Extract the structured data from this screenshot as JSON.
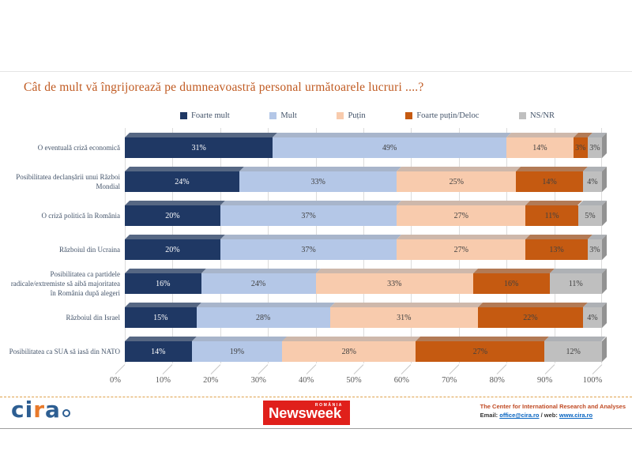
{
  "title": "Cât de mult vă îngrijorează pe dumneavoastră personal următoarele lucruri ....?",
  "chart_data": {
    "type": "bar",
    "orientation": "horizontal",
    "stacked": true,
    "grid": true,
    "legend_position": "top",
    "xlim": [
      0,
      100
    ],
    "value_suffix": "%",
    "x_tick_labels": [
      "0%",
      "10%",
      "20%",
      "30%",
      "40%",
      "50%",
      "60%",
      "70%",
      "80%",
      "90%",
      "100%"
    ],
    "categories": [
      "O eventuală criză economică",
      "Posibilitatea declanșării unui Război Mondial",
      "O criză politică în România",
      "Războiul din Ucraina",
      "Posibilitatea ca partidele radicale/extremiste să aibă majoritatea în România după alegeri",
      "Războiul din Israel",
      "Posibilitatea ca SUA să iasă din NATO"
    ],
    "series": [
      {
        "name": "Foarte mult",
        "color": "#1F3864",
        "label_color": "#FFFFFF",
        "values": [
          31,
          24,
          20,
          20,
          16,
          15,
          14
        ]
      },
      {
        "name": "Mult",
        "color": "#B4C7E7",
        "label_color": "#404040",
        "values": [
          49,
          33,
          37,
          37,
          24,
          28,
          19
        ]
      },
      {
        "name": "Puțin",
        "color": "#F8CBAD",
        "label_color": "#404040",
        "values": [
          14,
          25,
          27,
          27,
          33,
          31,
          28
        ]
      },
      {
        "name": "Foarte puțin/Deloc",
        "color": "#C55A11",
        "label_color": "#404040",
        "values": [
          3,
          14,
          11,
          13,
          16,
          22,
          27
        ]
      },
      {
        "name": "NS/NR",
        "color": "#BFBFBF",
        "label_color": "#404040",
        "values": [
          3,
          4,
          5,
          3,
          11,
          4,
          12
        ]
      }
    ]
  },
  "colors": {
    "title": "#C05A21",
    "category_label": "#44546A",
    "axis_label": "#595959",
    "gridline": "#DCDCDC",
    "footer_dash": "#DFA04A",
    "newsweek_red": "#E0201B",
    "link_blue": "#0563C1",
    "cira_blue": "#2D5E92",
    "cira_orange": "#E87A2B"
  },
  "footer": {
    "cira": {
      "p1": "ci",
      "p2": "r",
      "p3": "a"
    },
    "newsweek": {
      "country": "ROMÂNIA",
      "wordmark": "Newsweek"
    },
    "org_name": "The Center for International Research and Analyses",
    "contact_prefix": "Email: ",
    "email": "office@cira.ro",
    "contact_mid": " / web: ",
    "web": "www.cira.ro"
  }
}
